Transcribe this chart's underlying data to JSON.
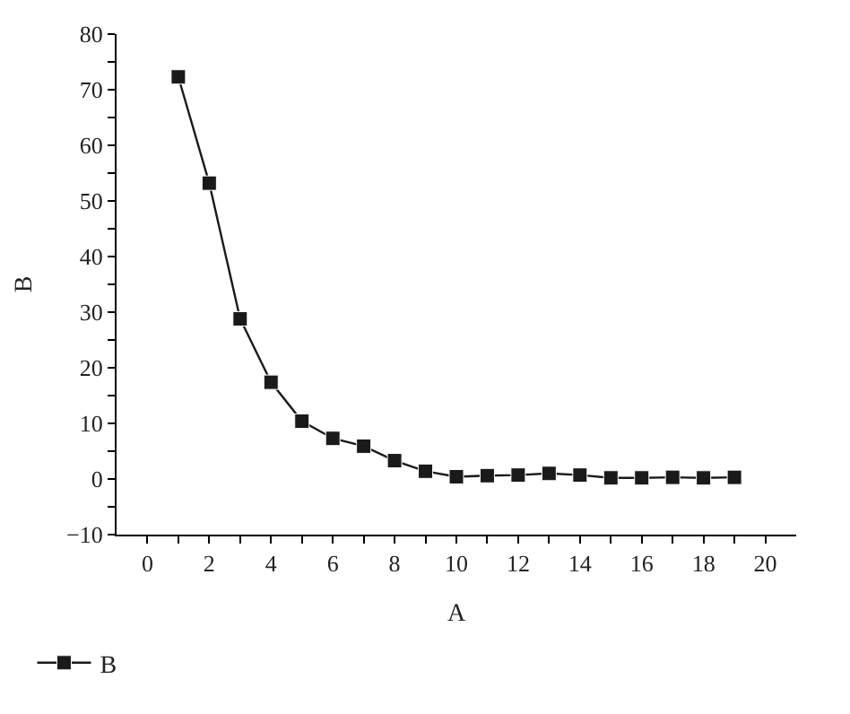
{
  "chart_data": {
    "type": "line",
    "xlabel": "A",
    "ylabel": "B",
    "x": [
      1,
      2,
      3,
      4,
      5,
      6,
      7,
      8,
      9,
      10,
      11,
      12,
      13,
      14,
      15,
      16,
      17,
      18,
      19
    ],
    "series": [
      {
        "name": "B",
        "color": "#1a1a1a",
        "values": [
          72.3,
          53.2,
          28.8,
          17.4,
          10.4,
          7.3,
          5.9,
          3.3,
          1.4,
          0.4,
          0.6,
          0.7,
          1.0,
          0.7,
          0.2,
          0.2,
          0.3,
          0.2,
          0.3
        ]
      }
    ],
    "xlim": [
      -1,
      21
    ],
    "xticks": [
      0,
      {
        "value": 1,
        "label": null
      },
      2,
      {
        "value": 3,
        "label": null
      },
      4,
      {
        "value": 5,
        "label": null
      },
      6,
      {
        "value": 7,
        "label": null
      },
      8,
      {
        "value": 9,
        "label": null
      },
      10,
      {
        "value": 11,
        "label": null
      },
      12,
      {
        "value": 13,
        "label": null
      },
      14,
      {
        "value": 15,
        "label": null
      },
      16,
      {
        "value": 17,
        "label": null
      },
      18,
      {
        "value": 19,
        "label": null
      },
      20
    ],
    "ylim": [
      -10,
      80
    ],
    "yticks": [
      -10,
      {
        "value": -5,
        "label": null
      },
      0,
      {
        "value": 5,
        "label": null
      },
      10,
      {
        "value": 15,
        "label": null
      },
      20,
      {
        "value": 25,
        "label": null
      },
      30,
      {
        "value": 35,
        "label": null
      },
      40,
      {
        "value": 45,
        "label": null
      },
      50,
      {
        "value": 55,
        "label": null
      },
      60,
      {
        "value": 65,
        "label": null
      },
      70,
      {
        "value": 75,
        "label": null
      },
      80
    ],
    "legend": "bottom left",
    "marker": "square",
    "line_style": "solid"
  }
}
